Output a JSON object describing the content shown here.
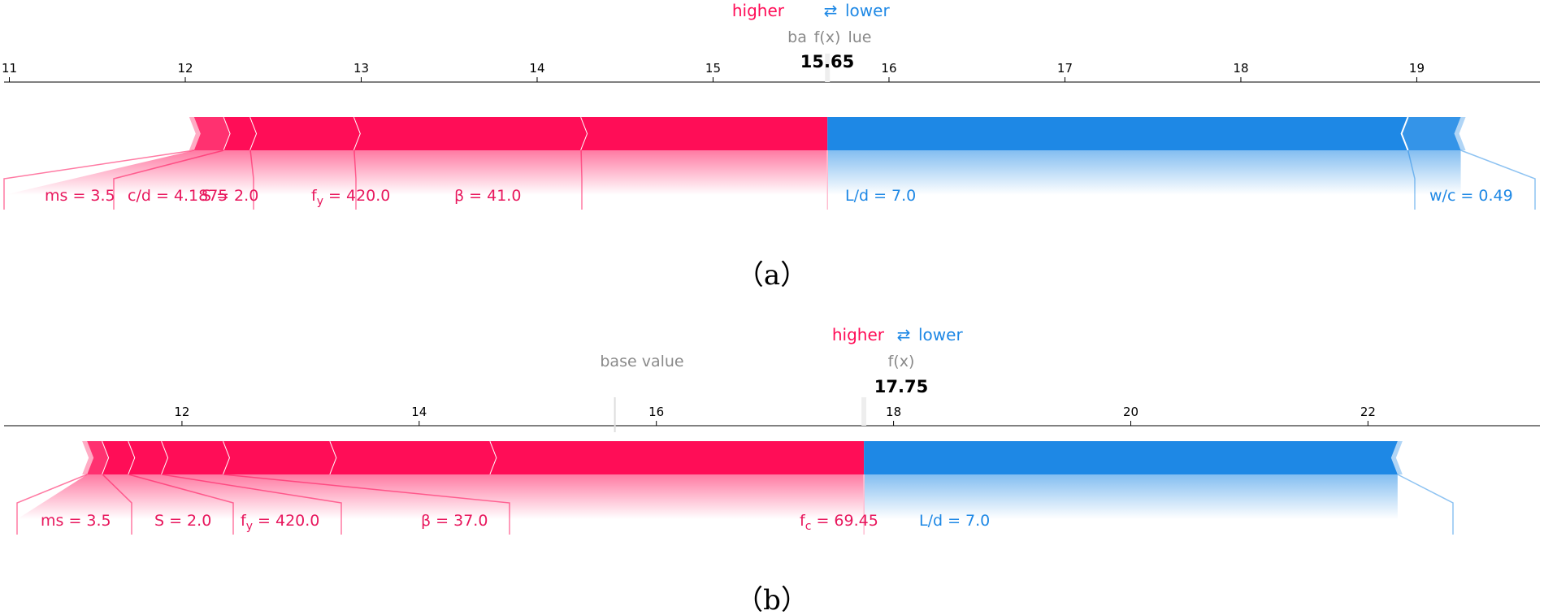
{
  "legend": {
    "higher": "higher",
    "arrow": "⇄",
    "lower": "lower"
  },
  "colors": {
    "positive": "#ff0d57",
    "negative": "#1e88e5",
    "positive_label": "#e8175d",
    "negative_label": "#1e88e5"
  },
  "chart_data": [
    {
      "type": "force",
      "caption": "（a）",
      "base_value_label": "ba",
      "base_value_label_tail": "lue",
      "fx_label": "f(x)",
      "fx_value_text": "15.65",
      "fx_value": 15.65,
      "xlim": [
        10.97,
        19.7
      ],
      "ticks": [
        11,
        12,
        13,
        14,
        15,
        16,
        17,
        18,
        19
      ],
      "bar_left": 12.05,
      "bar_right": 19.25,
      "positive": [
        {
          "name": "ms = 3.5",
          "start": 12.05,
          "end": 12.22
        },
        {
          "name": "c/d = 4.1875",
          "start": 12.22,
          "end": 12.37
        },
        {
          "name": "S = 2.0",
          "start": 12.37,
          "end": 12.96
        },
        {
          "name": "fy = 420.0",
          "start": 12.96,
          "end": 14.25
        },
        {
          "name": "β = 41.0",
          "start": 14.25,
          "end": 15.65
        }
      ],
      "negative": [
        {
          "name": "L/d = 7.0",
          "start": 15.65,
          "end": 18.95
        },
        {
          "name": "w/c = 0.49",
          "start": 18.95,
          "end": 19.25
        }
      ],
      "labels": [
        {
          "text": "ms = 3.5",
          "sub": "",
          "side": "pos"
        },
        {
          "text": "c/d = 4.1875",
          "sub": "",
          "side": "pos"
        },
        {
          "text": "S = 2.0",
          "sub": "",
          "side": "pos"
        },
        {
          "pre": "f",
          "sub": "y",
          "post": " = 420.0",
          "side": "pos"
        },
        {
          "text": "β = 41.0",
          "sub": "",
          "side": "pos"
        },
        {
          "text": "L/d = 7.0",
          "sub": "",
          "side": "neg"
        },
        {
          "text": "w/c = 0.49",
          "sub": "",
          "side": "neg"
        }
      ]
    },
    {
      "type": "force",
      "caption": "（b）",
      "base_value_label": "base value",
      "base_value": 15.65,
      "fx_label": "f(x)",
      "fx_value_text": "17.75",
      "fx_value": 17.75,
      "xlim": [
        10.5,
        23.45
      ],
      "ticks": [
        12,
        14,
        16,
        18,
        20,
        22
      ],
      "bar_left": 11.2,
      "bar_right": 22.25,
      "positive": [
        {
          "name": "ms = 3.5",
          "start": 11.2,
          "end": 11.33
        },
        {
          "name": "",
          "start": 11.33,
          "end": 11.55
        },
        {
          "name": "S = 2.0",
          "start": 11.55,
          "end": 11.83
        },
        {
          "name": "fy = 420.0",
          "start": 11.83,
          "end": 12.35
        },
        {
          "name": "β = 37.0",
          "start": 12.35,
          "end": 13.25
        },
        {
          "name": "",
          "start": 13.25,
          "end": 14.6
        },
        {
          "name": "fc = 69.45",
          "start": 14.6,
          "end": 17.75
        }
      ],
      "negative": [
        {
          "name": "L/d = 7.0",
          "start": 17.75,
          "end": 22.25
        }
      ],
      "labels": [
        {
          "text": "ms = 3.5",
          "sub": "",
          "side": "pos"
        },
        {
          "text": "S = 2.0",
          "sub": "",
          "side": "pos"
        },
        {
          "pre": "f",
          "sub": "y",
          "post": " = 420.0",
          "side": "pos"
        },
        {
          "text": "β = 37.0",
          "sub": "",
          "side": "pos"
        },
        {
          "pre": "f",
          "sub": "c",
          "post": " = 69.45",
          "side": "pos"
        },
        {
          "text": "L/d = 7.0",
          "sub": "",
          "side": "neg"
        }
      ]
    }
  ]
}
